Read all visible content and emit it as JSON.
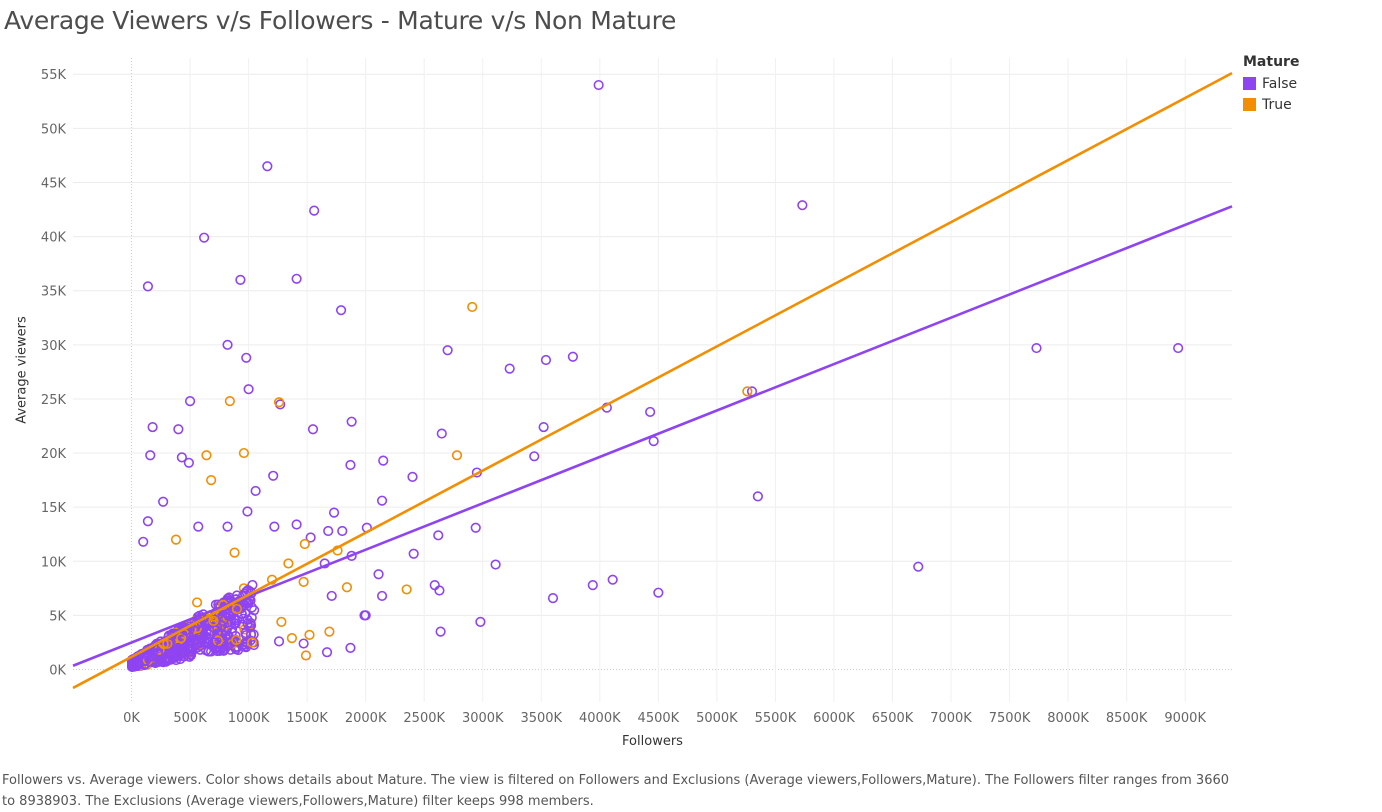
{
  "chart_data": {
    "type": "scatter",
    "title": "Average Viewers v/s Followers - Mature v/s Non Mature",
    "xlabel": "Followers",
    "ylabel": "Average viewers",
    "xlim": [
      -500,
      9400
    ],
    "ylim": [
      -3000,
      56500
    ],
    "x_ticks": [
      0,
      500,
      1000,
      1500,
      2000,
      2500,
      3000,
      3500,
      4000,
      4500,
      5000,
      5500,
      6000,
      6500,
      7000,
      7500,
      8000,
      8500,
      9000
    ],
    "x_tick_labels": [
      "0K",
      "500K",
      "1000K",
      "1500K",
      "2000K",
      "2500K",
      "3000K",
      "3500K",
      "4000K",
      "4500K",
      "5000K",
      "5500K",
      "6000K",
      "6500K",
      "7000K",
      "7500K",
      "8000K",
      "8500K",
      "9000K"
    ],
    "y_ticks": [
      0,
      5000,
      10000,
      15000,
      20000,
      25000,
      30000,
      35000,
      40000,
      45000,
      50000,
      55000
    ],
    "y_tick_labels": [
      "0K",
      "5K",
      "10K",
      "15K",
      "20K",
      "25K",
      "30K",
      "35K",
      "40K",
      "45K",
      "50K",
      "55K"
    ],
    "grid": true,
    "legend_position": "top-right",
    "legend_title": "Mature",
    "series": [
      {
        "name": "False",
        "color": "#8f44f2",
        "trend": [
          [
            -500,
            350
          ],
          [
            9400,
            42800
          ]
        ],
        "points": [
          [
            3990,
            54000
          ],
          [
            1160,
            46500
          ],
          [
            1560,
            42400
          ],
          [
            5730,
            42900
          ],
          [
            620,
            39900
          ],
          [
            140,
            35400
          ],
          [
            930,
            36000
          ],
          [
            1410,
            36100
          ],
          [
            1790,
            33200
          ],
          [
            820,
            30000
          ],
          [
            980,
            28800
          ],
          [
            2700,
            29500
          ],
          [
            3770,
            28900
          ],
          [
            3540,
            28600
          ],
          [
            3230,
            27800
          ],
          [
            1000,
            25900
          ],
          [
            1270,
            24500
          ],
          [
            500,
            24800
          ],
          [
            4060,
            24200
          ],
          [
            4430,
            23800
          ],
          [
            7730,
            29700
          ],
          [
            8940,
            29700
          ],
          [
            5300,
            25700
          ],
          [
            180,
            22400
          ],
          [
            400,
            22200
          ],
          [
            1550,
            22200
          ],
          [
            1880,
            22900
          ],
          [
            2650,
            21800
          ],
          [
            3520,
            22400
          ],
          [
            4460,
            21100
          ],
          [
            160,
            19800
          ],
          [
            430,
            19600
          ],
          [
            490,
            19100
          ],
          [
            1870,
            18900
          ],
          [
            2150,
            19300
          ],
          [
            3440,
            19700
          ],
          [
            2950,
            18200
          ],
          [
            1210,
            17900
          ],
          [
            2400,
            17800
          ],
          [
            5350,
            16000
          ],
          [
            1060,
            16500
          ],
          [
            2140,
            15600
          ],
          [
            270,
            15500
          ],
          [
            990,
            14600
          ],
          [
            1730,
            14500
          ],
          [
            140,
            13700
          ],
          [
            570,
            13200
          ],
          [
            820,
            13200
          ],
          [
            1220,
            13200
          ],
          [
            1410,
            13400
          ],
          [
            1680,
            12800
          ],
          [
            1800,
            12800
          ],
          [
            2010,
            13100
          ],
          [
            2940,
            13100
          ],
          [
            2620,
            12400
          ],
          [
            100,
            11800
          ],
          [
            1530,
            12200
          ],
          [
            6720,
            9500
          ],
          [
            3110,
            9700
          ],
          [
            2410,
            10700
          ],
          [
            1880,
            10500
          ],
          [
            1650,
            9800
          ],
          [
            2110,
            8800
          ],
          [
            2590,
            7800
          ],
          [
            3940,
            7800
          ],
          [
            4110,
            8300
          ],
          [
            2630,
            7300
          ],
          [
            4500,
            7100
          ],
          [
            3600,
            6600
          ],
          [
            2140,
            6800
          ],
          [
            1710,
            6800
          ],
          [
            1990,
            5000
          ],
          [
            2000,
            5000
          ],
          [
            2980,
            4400
          ],
          [
            2640,
            3500
          ],
          [
            1670,
            1600
          ],
          [
            1870,
            2000
          ],
          [
            1470,
            2400
          ],
          [
            1260,
            2600
          ],
          [
            700,
            2500
          ]
        ]
      },
      {
        "name": "True",
        "color": "#f28e00",
        "trend": [
          [
            -500,
            -1700
          ],
          [
            9400,
            55100
          ]
        ],
        "points": [
          [
            2910,
            33500
          ],
          [
            5260,
            25700
          ],
          [
            840,
            24800
          ],
          [
            1260,
            24700
          ],
          [
            960,
            20000
          ],
          [
            640,
            19800
          ],
          [
            2780,
            19800
          ],
          [
            680,
            17500
          ],
          [
            380,
            12000
          ],
          [
            880,
            10800
          ],
          [
            1480,
            11600
          ],
          [
            1760,
            11000
          ],
          [
            1340,
            9800
          ],
          [
            1200,
            8300
          ],
          [
            1470,
            8100
          ],
          [
            1840,
            7600
          ],
          [
            2350,
            7400
          ],
          [
            900,
            5600
          ],
          [
            1280,
            4400
          ],
          [
            1520,
            3200
          ],
          [
            1690,
            3500
          ],
          [
            1370,
            2900
          ],
          [
            1030,
            2500
          ],
          [
            1490,
            1300
          ],
          [
            700,
            4500
          ],
          [
            560,
            6200
          ]
        ]
      }
    ]
  },
  "caption": "Followers vs. Average viewers.  Color shows details about Mature. The view is filtered on Followers and Exclusions (Average viewers,Followers,Mature). The Followers filter ranges from 3660 to 8938903. The Exclusions (Average viewers,Followers,Mature) filter keeps 998 members."
}
